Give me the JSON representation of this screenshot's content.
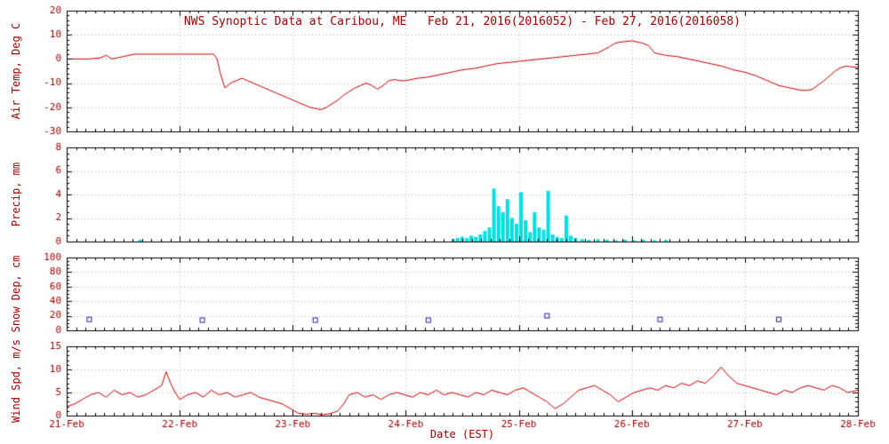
{
  "title": "NWS Synoptic Data at Caribou, ME   Feb 21, 2016(2016052) - Feb 27, 2016(2016058)",
  "xlabel": "Date (EST)",
  "x_tick_labels": [
    "21-Feb",
    "22-Feb",
    "23-Feb",
    "24-Feb",
    "25-Feb",
    "26-Feb",
    "27-Feb",
    "28-Feb"
  ],
  "x_range": [
    0,
    7
  ],
  "text_color": "#a40000",
  "axis_color": "#000000",
  "grid_color": "#b0b0b0",
  "chart_data": [
    {
      "type": "line",
      "name": "air-temperature",
      "ylabel": "Air Temp, Deg C",
      "ylim": [
        -30,
        20
      ],
      "yticks": [
        -30,
        -20,
        -10,
        0,
        10,
        20
      ],
      "minor_step": 2,
      "color": "#cc0000",
      "x": [
        0,
        0.1,
        0.2,
        0.3,
        0.35,
        0.4,
        0.45,
        0.5,
        0.6,
        0.7,
        0.8,
        0.9,
        1.0,
        1.1,
        1.2,
        1.3,
        1.33,
        1.36,
        1.4,
        1.45,
        1.5,
        1.55,
        1.6,
        1.65,
        1.7,
        1.75,
        1.8,
        1.85,
        1.9,
        1.95,
        2.0,
        2.05,
        2.1,
        2.15,
        2.2,
        2.25,
        2.3,
        2.35,
        2.4,
        2.45,
        2.5,
        2.55,
        2.6,
        2.65,
        2.7,
        2.75,
        2.8,
        2.85,
        2.9,
        2.95,
        3.0,
        3.1,
        3.2,
        3.3,
        3.4,
        3.5,
        3.6,
        3.7,
        3.8,
        3.9,
        4.0,
        4.1,
        4.2,
        4.3,
        4.4,
        4.5,
        4.6,
        4.7,
        4.8,
        4.85,
        4.9,
        5.0,
        5.05,
        5.1,
        5.15,
        5.2,
        5.3,
        5.4,
        5.5,
        5.6,
        5.7,
        5.8,
        5.9,
        6.0,
        6.1,
        6.2,
        6.3,
        6.4,
        6.5,
        6.55,
        6.6,
        6.7,
        6.8,
        6.85,
        6.9,
        7.0
      ],
      "y": [
        0,
        0,
        0,
        0.5,
        1.5,
        0,
        0.5,
        1,
        2,
        2,
        2,
        2,
        2,
        2,
        2,
        2,
        0,
        -6,
        -12,
        -10,
        -9,
        -8,
        -9,
        -10,
        -11,
        -12,
        -13,
        -14,
        -15,
        -16,
        -17,
        -18,
        -19,
        -20,
        -20.5,
        -21,
        -20,
        -18.5,
        -17,
        -15,
        -13.5,
        -12,
        -11,
        -10,
        -11,
        -12.5,
        -11,
        -9,
        -8.5,
        -9,
        -9,
        -8,
        -7.5,
        -6.5,
        -5.5,
        -4.5,
        -4,
        -3,
        -2,
        -1.5,
        -1,
        -0.5,
        0,
        0.5,
        1,
        1.5,
        2,
        2.5,
        5,
        6.5,
        7,
        7.5,
        7,
        6.5,
        5.5,
        2.5,
        1.5,
        1,
        0,
        -1,
        -2,
        -3,
        -4.5,
        -5.5,
        -7,
        -9,
        -11,
        -12,
        -13,
        -13,
        -12.5,
        -9,
        -5,
        -3.5,
        -3,
        -3.5
      ]
    },
    {
      "type": "bar",
      "name": "precipitation",
      "ylabel": "Precip, mm",
      "ylim": [
        0,
        8
      ],
      "yticks": [
        0,
        2,
        4,
        6,
        8
      ],
      "minor_step": 0.5,
      "color": "#00e0e0",
      "x": [
        0.65,
        3.42,
        3.46,
        3.5,
        3.54,
        3.58,
        3.62,
        3.66,
        3.7,
        3.74,
        3.78,
        3.82,
        3.86,
        3.9,
        3.94,
        3.98,
        4.02,
        4.06,
        4.1,
        4.14,
        4.18,
        4.22,
        4.26,
        4.3,
        4.34,
        4.38,
        4.42,
        4.46,
        4.5,
        4.56,
        4.62,
        4.7,
        4.78,
        4.86,
        4.94,
        5.02,
        5.1,
        5.2,
        5.3
      ],
      "y": [
        0.15,
        0.2,
        0.3,
        0.4,
        0.3,
        0.5,
        0.4,
        0.6,
        0.9,
        1.2,
        4.5,
        3.0,
        2.5,
        3.6,
        2.0,
        1.5,
        4.2,
        1.8,
        0.8,
        2.5,
        1.2,
        1.0,
        4.3,
        0.6,
        0.4,
        0.3,
        2.2,
        0.5,
        0.3,
        0.2,
        0.15,
        0.2,
        0.15,
        0.1,
        0.15,
        0.1,
        0.15,
        0.1,
        0.15
      ]
    },
    {
      "type": "scatter",
      "name": "snow-depth",
      "ylabel": "Snow Dep, cm",
      "ylim": [
        0,
        100
      ],
      "yticks": [
        0,
        20,
        40,
        60,
        80,
        100
      ],
      "minor_step": 5,
      "color": "#2222bb",
      "x": [
        0.2,
        1.2,
        2.2,
        3.2,
        4.25,
        5.25,
        6.3
      ],
      "y": [
        15,
        14,
        14,
        14,
        20,
        15,
        15
      ]
    },
    {
      "type": "line",
      "name": "wind-speed",
      "ylabel": "Wind Spd, m/s",
      "ylim": [
        0,
        15
      ],
      "yticks": [
        0,
        5,
        10,
        15
      ],
      "minor_step": 1,
      "color": "#cc0000",
      "x": [
        0.0,
        0.07,
        0.14,
        0.21,
        0.28,
        0.35,
        0.42,
        0.49,
        0.56,
        0.63,
        0.7,
        0.77,
        0.84,
        0.88,
        0.92,
        0.96,
        1.0,
        1.07,
        1.14,
        1.21,
        1.28,
        1.35,
        1.42,
        1.49,
        1.56,
        1.63,
        1.7,
        1.77,
        1.84,
        1.91,
        1.98,
        2.05,
        2.12,
        2.19,
        2.26,
        2.33,
        2.4,
        2.45,
        2.5,
        2.57,
        2.64,
        2.71,
        2.78,
        2.85,
        2.92,
        2.99,
        3.06,
        3.13,
        3.2,
        3.27,
        3.34,
        3.41,
        3.48,
        3.55,
        3.62,
        3.69,
        3.76,
        3.83,
        3.9,
        3.97,
        4.04,
        4.11,
        4.18,
        4.25,
        4.32,
        4.39,
        4.46,
        4.53,
        4.6,
        4.67,
        4.74,
        4.81,
        4.88,
        4.95,
        5.02,
        5.09,
        5.16,
        5.23,
        5.3,
        5.37,
        5.44,
        5.51,
        5.58,
        5.65,
        5.72,
        5.79,
        5.86,
        5.93,
        6.0,
        6.07,
        6.14,
        6.21,
        6.28,
        6.35,
        6.42,
        6.49,
        6.56,
        6.63,
        6.7,
        6.77,
        6.84,
        6.91,
        7.0
      ],
      "y": [
        2.0,
        2.5,
        3.5,
        4.5,
        5.0,
        4.0,
        5.5,
        4.5,
        5.0,
        4.0,
        4.5,
        5.5,
        6.5,
        9.5,
        7.0,
        5.0,
        3.5,
        4.5,
        5.0,
        4.0,
        5.5,
        4.5,
        5.0,
        4.0,
        4.5,
        5.0,
        4.0,
        3.5,
        3.0,
        2.5,
        1.5,
        0.5,
        0.3,
        0.5,
        0.2,
        0.4,
        1.0,
        2.5,
        4.5,
        5.0,
        4.0,
        4.5,
        3.5,
        4.5,
        5.0,
        4.5,
        4.0,
        5.0,
        4.5,
        5.5,
        4.5,
        5.0,
        4.5,
        4.0,
        5.0,
        4.5,
        5.5,
        5.0,
        4.5,
        5.5,
        6.0,
        5.0,
        4.0,
        3.0,
        1.5,
        2.5,
        4.0,
        5.5,
        6.0,
        6.5,
        5.5,
        4.5,
        3.0,
        4.0,
        5.0,
        5.5,
        6.0,
        5.5,
        6.5,
        6.0,
        7.0,
        6.5,
        7.5,
        7.0,
        8.5,
        10.5,
        8.5,
        7.0,
        6.5,
        6.0,
        5.5,
        5.0,
        4.5,
        5.5,
        5.0,
        6.0,
        6.5,
        6.0,
        5.5,
        6.5,
        6.0,
        5.0,
        5.5
      ]
    }
  ]
}
